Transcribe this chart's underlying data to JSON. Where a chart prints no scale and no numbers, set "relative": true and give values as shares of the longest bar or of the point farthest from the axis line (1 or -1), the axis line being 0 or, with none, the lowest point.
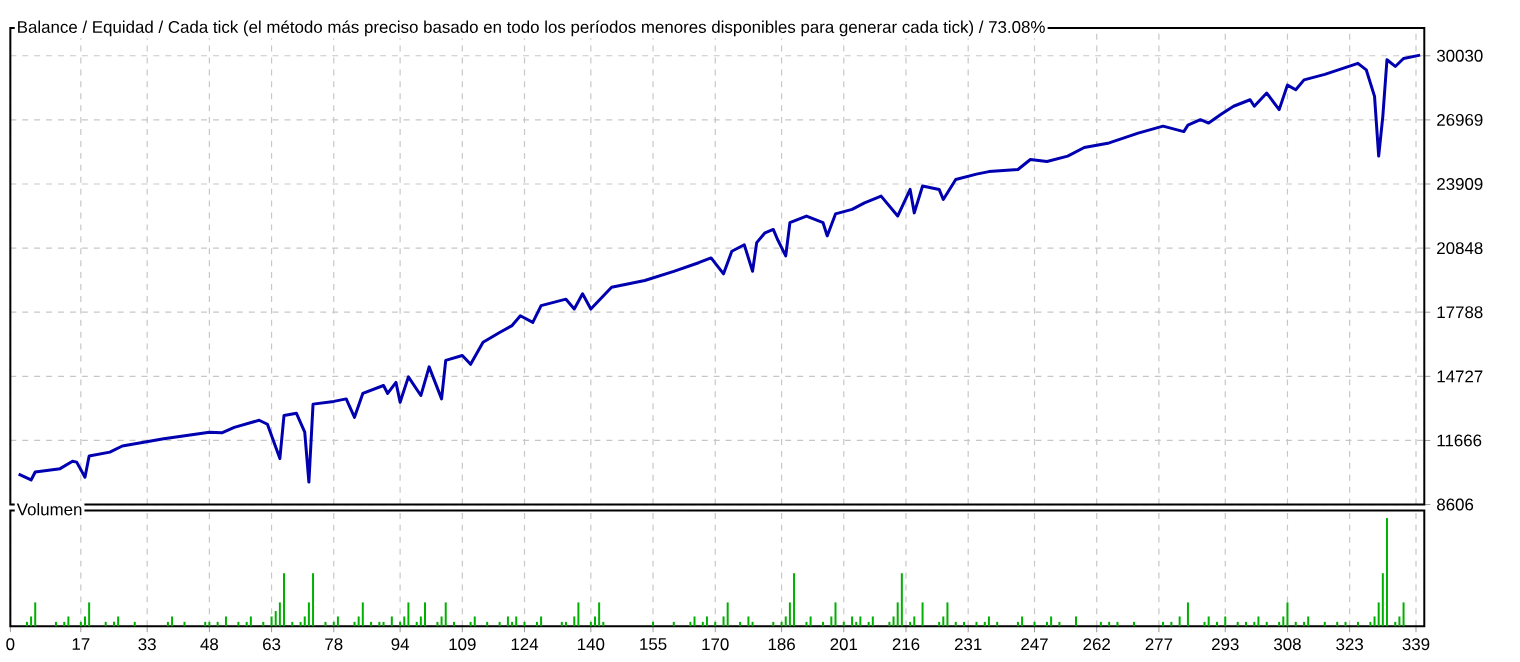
{
  "chart_data": [
    {
      "type": "line",
      "title": "Balance / Equidad / Cada tick (el método más preciso basado en todo los períodos menores disponibles para generar cada tick)  / 73.08%",
      "color": "#0000b0",
      "x": [
        2,
        5,
        6,
        12,
        15,
        16,
        18,
        19,
        24,
        27,
        37,
        48,
        51,
        54,
        60,
        62,
        65,
        66,
        69,
        71,
        72,
        73,
        78,
        81,
        83,
        85,
        90,
        91,
        93,
        94,
        96,
        99,
        101,
        104,
        105,
        109,
        111,
        114,
        118,
        121,
        123,
        126,
        128,
        134,
        136,
        138,
        140,
        145,
        153,
        160,
        166,
        169,
        172,
        174,
        177,
        179,
        180,
        182,
        184,
        185,
        187,
        188,
        192,
        196,
        197,
        199,
        203,
        206,
        210,
        214,
        217,
        218,
        220,
        224,
        225,
        228,
        233,
        236,
        243,
        246,
        250,
        255,
        259,
        265,
        272,
        278,
        283,
        284,
        287,
        289,
        292,
        295,
        299,
        300,
        303,
        306,
        308,
        310,
        312,
        317,
        325,
        327,
        329,
        330,
        331,
        332,
        334,
        336,
        340
      ],
      "values": [
        10060,
        9780,
        10160,
        10320,
        10670,
        10630,
        9910,
        10920,
        11110,
        11400,
        11750,
        12060,
        12030,
        12290,
        12630,
        12440,
        10800,
        12860,
        12960,
        12060,
        9680,
        13400,
        13530,
        13650,
        12770,
        13910,
        14290,
        13910,
        14440,
        13490,
        14700,
        13810,
        15180,
        13650,
        15490,
        15720,
        15300,
        16350,
        16820,
        17150,
        17620,
        17300,
        18100,
        18410,
        17940,
        18670,
        17940,
        18980,
        19300,
        19740,
        20150,
        20380,
        19620,
        20700,
        21010,
        19740,
        21110,
        21580,
        21740,
        21270,
        20480,
        22060,
        22380,
        22060,
        21430,
        22480,
        22700,
        23010,
        23330,
        22380,
        23650,
        22530,
        23810,
        23650,
        23170,
        24120,
        24380,
        24500,
        24600,
        25080,
        24980,
        25240,
        25650,
        25870,
        26340,
        26670,
        26410,
        26720,
        26980,
        26820,
        27240,
        27620,
        27930,
        27620,
        28250,
        27460,
        28630,
        28410,
        28880,
        29140,
        29670,
        29360,
        28090,
        25240,
        27140,
        29840,
        29520,
        29900,
        30060
      ],
      "xlim": [
        0,
        341
      ],
      "ylim": [
        8606,
        31360
      ],
      "xticks": [
        0,
        17,
        33,
        48,
        63,
        78,
        94,
        109,
        124,
        140,
        155,
        170,
        186,
        201,
        216,
        231,
        247,
        262,
        277,
        293,
        308,
        323,
        339
      ],
      "yticks": [
        8606,
        11666,
        14727,
        17788,
        20848,
        23909,
        26969,
        30030
      ],
      "grid": true,
      "tick_labels": "y"
    },
    {
      "type": "bar",
      "title": "Volumen",
      "color": "#00b000",
      "relative": true,
      "x": [
        4,
        5,
        6,
        11,
        13,
        14,
        17,
        18,
        19,
        23,
        25,
        26,
        30,
        38,
        39,
        42,
        47,
        48,
        50,
        52,
        55,
        57,
        58,
        61,
        63,
        64,
        65,
        66,
        68,
        70,
        71,
        72,
        73,
        76,
        78,
        79,
        83,
        84,
        85,
        87,
        89,
        90,
        92,
        94,
        95,
        96,
        98,
        99,
        100,
        103,
        104,
        105,
        107,
        111,
        112,
        115,
        118,
        120,
        121,
        122,
        124,
        127,
        128,
        133,
        134,
        136,
        137,
        140,
        141,
        142,
        143,
        155,
        160,
        164,
        165,
        167,
        168,
        170,
        172,
        173,
        176,
        178,
        179,
        184,
        186,
        187,
        188,
        189,
        192,
        193,
        196,
        198,
        199,
        201,
        203,
        204,
        205,
        207,
        208,
        212,
        213,
        214,
        215,
        217,
        218,
        220,
        224,
        225,
        226,
        228,
        230,
        233,
        235,
        236,
        238,
        243,
        244,
        247,
        250,
        251,
        253,
        257,
        263,
        265,
        267,
        271,
        278,
        280,
        282,
        284,
        288,
        289,
        291,
        293,
        296,
        298,
        300,
        301,
        303,
        306,
        307,
        308,
        310,
        312,
        313,
        317,
        320,
        322,
        325,
        328,
        329,
        330,
        331,
        332,
        334,
        335,
        336
      ],
      "values": [
        0.04,
        0.09,
        0.22,
        0.04,
        0.04,
        0.09,
        0.04,
        0.09,
        0.22,
        0.04,
        0.04,
        0.09,
        0.04,
        0.04,
        0.09,
        0.04,
        0.04,
        0.04,
        0.04,
        0.09,
        0.04,
        0.04,
        0.09,
        0.04,
        0.09,
        0.14,
        0.22,
        0.49,
        0.04,
        0.04,
        0.09,
        0.22,
        0.49,
        0.04,
        0.04,
        0.09,
        0.04,
        0.09,
        0.22,
        0.04,
        0.04,
        0.04,
        0.09,
        0.04,
        0.09,
        0.22,
        0.04,
        0.09,
        0.22,
        0.04,
        0.09,
        0.22,
        0.04,
        0.04,
        0.09,
        0.04,
        0.04,
        0.09,
        0.04,
        0.09,
        0.04,
        0.04,
        0.09,
        0.04,
        0.04,
        0.09,
        0.22,
        0.04,
        0.09,
        0.22,
        0.04,
        0.04,
        0.04,
        0.04,
        0.09,
        0.04,
        0.09,
        0.04,
        0.09,
        0.22,
        0.04,
        0.09,
        0.04,
        0.04,
        0.04,
        0.09,
        0.22,
        0.49,
        0.04,
        0.09,
        0.04,
        0.09,
        0.22,
        0.04,
        0.09,
        0.04,
        0.09,
        0.04,
        0.09,
        0.04,
        0.09,
        0.22,
        0.49,
        0.04,
        0.09,
        0.22,
        0.04,
        0.09,
        0.22,
        0.04,
        0.04,
        0.04,
        0.04,
        0.09,
        0.04,
        0.04,
        0.09,
        0.04,
        0.04,
        0.09,
        0.04,
        0.09,
        0.04,
        0.04,
        0.04,
        0.04,
        0.04,
        0.04,
        0.09,
        0.22,
        0.04,
        0.09,
        0.04,
        0.09,
        0.04,
        0.04,
        0.04,
        0.09,
        0.04,
        0.04,
        0.09,
        0.22,
        0.04,
        0.04,
        0.09,
        0.04,
        0.04,
        0.04,
        0.04,
        0.04,
        0.09,
        0.22,
        0.49,
        1,
        0.04,
        0.09,
        0.22
      ],
      "xlim": [
        0,
        341
      ],
      "xticks": [
        0,
        17,
        33,
        48,
        63,
        78,
        94,
        109,
        124,
        140,
        155,
        170,
        186,
        201,
        216,
        231,
        247,
        262,
        277,
        293,
        308,
        323,
        339
      ],
      "grid": "x",
      "tick_labels": "x"
    }
  ]
}
